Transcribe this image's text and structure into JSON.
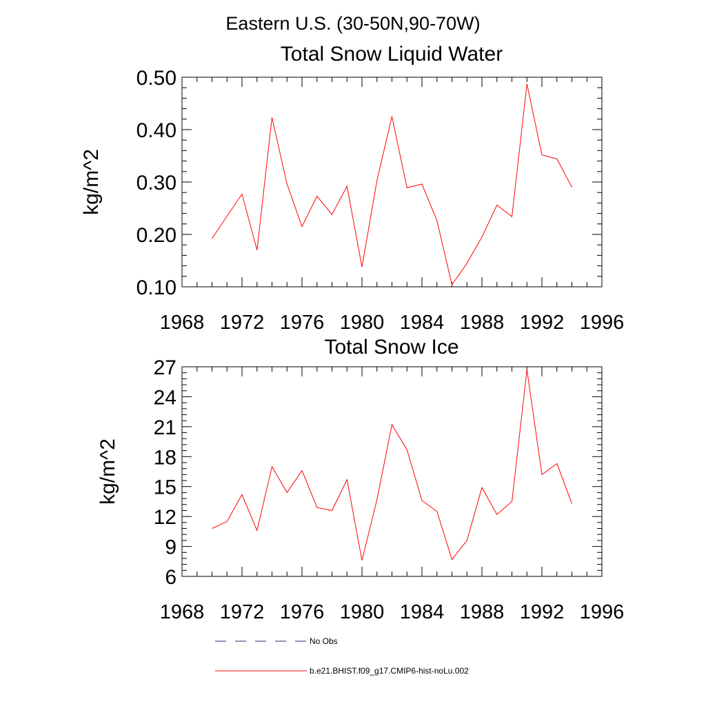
{
  "figure": {
    "suptitle": "Eastern U.S. (30-50N,90-70W)"
  },
  "chart_data": [
    {
      "type": "line",
      "title": "Total Snow Liquid Water",
      "xlabel": "",
      "ylabel": "kg/m^2",
      "xlim": [
        1968,
        1996
      ],
      "ylim": [
        0.1,
        0.5
      ],
      "xticks": [
        1968,
        1972,
        1976,
        1980,
        1984,
        1988,
        1992,
        1996
      ],
      "xtick_labels": [
        "1968",
        "1972",
        "1976",
        "1980",
        "1984",
        "1988",
        "1992",
        "1996"
      ],
      "yticks": [
        0.1,
        0.2,
        0.3,
        0.4,
        0.5
      ],
      "ytick_labels": [
        "0.10",
        "0.20",
        "0.30",
        "0.40",
        "0.50"
      ],
      "grid": false,
      "x": [
        1970,
        1971,
        1972,
        1973,
        1974,
        1975,
        1976,
        1977,
        1978,
        1979,
        1980,
        1981,
        1982,
        1983,
        1984,
        1985,
        1986,
        1987,
        1988,
        1989,
        1990,
        1991,
        1992,
        1993,
        1994
      ],
      "series": [
        {
          "name": "b.e21.BHIST.f09_g17.CMIP6-hist-noLu.002",
          "color": "#ff0000",
          "values": [
            0.192,
            0.235,
            0.277,
            0.17,
            0.423,
            0.296,
            0.215,
            0.273,
            0.238,
            0.292,
            0.138,
            0.303,
            0.425,
            0.289,
            0.296,
            0.226,
            0.104,
            0.145,
            0.195,
            0.256,
            0.234,
            0.487,
            0.352,
            0.344,
            0.29
          ]
        }
      ]
    },
    {
      "type": "line",
      "title": "Total Snow Ice",
      "xlabel": "",
      "ylabel": "kg/m^2",
      "xlim": [
        1968,
        1996
      ],
      "ylim": [
        6,
        27
      ],
      "xticks": [
        1968,
        1972,
        1976,
        1980,
        1984,
        1988,
        1992,
        1996
      ],
      "xtick_labels": [
        "1968",
        "1972",
        "1976",
        "1980",
        "1984",
        "1988",
        "1992",
        "1996"
      ],
      "yticks": [
        6,
        9,
        12,
        15,
        18,
        21,
        24,
        27
      ],
      "ytick_labels": [
        "6",
        "9",
        "12",
        "15",
        "18",
        "21",
        "24",
        "27"
      ],
      "grid": false,
      "x": [
        1970,
        1971,
        1972,
        1973,
        1974,
        1975,
        1976,
        1977,
        1978,
        1979,
        1980,
        1981,
        1982,
        1983,
        1984,
        1985,
        1986,
        1987,
        1988,
        1989,
        1990,
        1991,
        1992,
        1993,
        1994
      ],
      "series": [
        {
          "name": "b.e21.BHIST.f09_g17.CMIP6-hist-noLu.002",
          "color": "#ff0000",
          "values": [
            10.8,
            11.5,
            14.2,
            10.6,
            17.0,
            14.4,
            16.6,
            12.9,
            12.6,
            15.7,
            7.6,
            13.7,
            21.2,
            18.7,
            13.6,
            12.5,
            7.7,
            9.6,
            14.9,
            12.2,
            13.5,
            26.7,
            16.2,
            17.3,
            13.3
          ]
        }
      ]
    }
  ],
  "legend": {
    "placement": "bottom",
    "items": [
      {
        "label": "No Obs",
        "style": "dashed",
        "color": "#1a2b6b"
      },
      {
        "label": "b.e21.BHIST.f09_g17.CMIP6-hist-noLu.002",
        "style": "solid",
        "color": "#ff0000"
      }
    ]
  }
}
